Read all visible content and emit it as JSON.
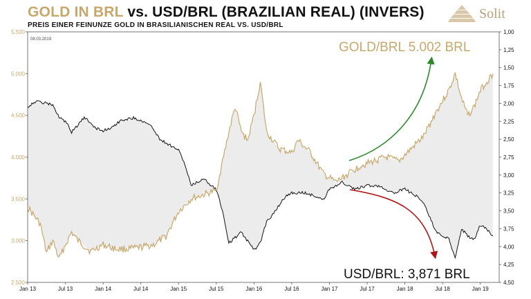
{
  "header": {
    "title_part1": "GOLD IN BRL",
    "title_part2": " vs. USD/BRL (BRAZILIAN REAL) (INVERS)",
    "subtitle": "PREIS EINER FEINUNZE GOLD IN BRASILIANISCHEN REAL VS. USD/BRL"
  },
  "logo": {
    "text": "Solit"
  },
  "date_stamp": "08.03.2019",
  "colors": {
    "gold": "#c7a86c",
    "usd": "#111111",
    "shade": "#ececec",
    "green_arrow": "#2c8a2c",
    "red_arrow": "#b01515"
  },
  "annotations": {
    "gold_label": "GOLD/BRL 5.002 BRL",
    "usd_label": "USD/BRL: 3,871 BRL"
  },
  "chart_data": {
    "type": "line",
    "x_ticks": [
      "Jan 13",
      "Jul 13",
      "Jan 14",
      "Jul 14",
      "Jan 15",
      "Jul 15",
      "Jan 16",
      "Jul 16",
      "Jan 17",
      "Jul 17",
      "Jan 18",
      "Jul 18",
      "Jan 19"
    ],
    "y_left": {
      "ticks": [
        "5.500",
        "5.000",
        "4.500",
        "4.000",
        "3.500",
        "3.000",
        "2.500"
      ],
      "ylim": [
        2500,
        5500
      ]
    },
    "y_right": {
      "ticks": [
        "1,00",
        "1,25",
        "1,50",
        "1,75",
        "2,00",
        "2,25",
        "2,50",
        "2,75",
        "3,00",
        "3,25",
        "3,50",
        "3,75",
        "4,00",
        "4,25",
        "4,50"
      ],
      "ylim": [
        1.0,
        4.5
      ],
      "inverted": true
    },
    "series": [
      {
        "name": "GOLD/BRL",
        "axis": "left",
        "x": [
          "2013-01",
          "2013-03",
          "2013-04",
          "2013-05",
          "2013-06",
          "2013-07",
          "2013-08",
          "2013-09",
          "2013-11",
          "2014-01",
          "2014-03",
          "2014-05",
          "2014-07",
          "2014-09",
          "2014-11",
          "2015-01",
          "2015-03",
          "2015-05",
          "2015-07",
          "2015-09",
          "2015-10",
          "2015-11",
          "2015-12",
          "2016-01",
          "2016-02",
          "2016-03",
          "2016-05",
          "2016-07",
          "2016-08",
          "2016-10",
          "2016-12",
          "2017-02",
          "2017-04",
          "2017-06",
          "2017-08",
          "2017-10",
          "2017-12",
          "2018-02",
          "2018-04",
          "2018-06",
          "2018-08",
          "2018-09",
          "2018-10",
          "2018-11",
          "2018-12",
          "2019-01",
          "2019-02",
          "2019-03"
        ],
        "values": [
          3400,
          3200,
          2850,
          3000,
          2780,
          2950,
          3100,
          3000,
          2870,
          2950,
          2900,
          2900,
          2920,
          2950,
          3050,
          3350,
          3500,
          3550,
          3600,
          4300,
          4600,
          4300,
          4200,
          4500,
          4900,
          4300,
          4100,
          4050,
          4200,
          4050,
          3800,
          3700,
          3800,
          3900,
          3950,
          4000,
          3950,
          4100,
          4250,
          4550,
          4800,
          5000,
          4700,
          4500,
          4600,
          4800,
          4900,
          5000
        ]
      },
      {
        "name": "USD/BRL",
        "axis": "right",
        "x": [
          "2013-01",
          "2013-02",
          "2013-03",
          "2013-05",
          "2013-06",
          "2013-07",
          "2013-08",
          "2013-10",
          "2013-12",
          "2014-01",
          "2014-02",
          "2014-04",
          "2014-06",
          "2014-08",
          "2014-09",
          "2014-10",
          "2014-12",
          "2015-01",
          "2015-02",
          "2015-03",
          "2015-05",
          "2015-07",
          "2015-08",
          "2015-09",
          "2015-11",
          "2016-01",
          "2016-02",
          "2016-03",
          "2016-04",
          "2016-06",
          "2016-07",
          "2016-09",
          "2016-11",
          "2016-12",
          "2017-01",
          "2017-03",
          "2017-05",
          "2017-07",
          "2017-09",
          "2017-11",
          "2018-01",
          "2018-03",
          "2018-04",
          "2018-05",
          "2018-06",
          "2018-07",
          "2018-08",
          "2018-09",
          "2018-10",
          "2018-11",
          "2018-12",
          "2019-01",
          "2019-02",
          "2019-03"
        ],
        "values": [
          2.05,
          1.98,
          1.98,
          2.02,
          2.2,
          2.25,
          2.4,
          2.2,
          2.35,
          2.38,
          2.35,
          2.23,
          2.2,
          2.28,
          2.35,
          2.5,
          2.6,
          2.65,
          2.85,
          3.15,
          3.05,
          3.2,
          3.5,
          3.95,
          3.8,
          4.05,
          3.95,
          3.65,
          3.55,
          3.3,
          3.25,
          3.25,
          3.3,
          3.35,
          3.2,
          3.1,
          3.2,
          3.15,
          3.15,
          3.25,
          3.2,
          3.3,
          3.4,
          3.6,
          3.8,
          3.85,
          3.9,
          4.15,
          3.75,
          3.85,
          3.9,
          3.7,
          3.75,
          3.85
        ]
      }
    ]
  }
}
